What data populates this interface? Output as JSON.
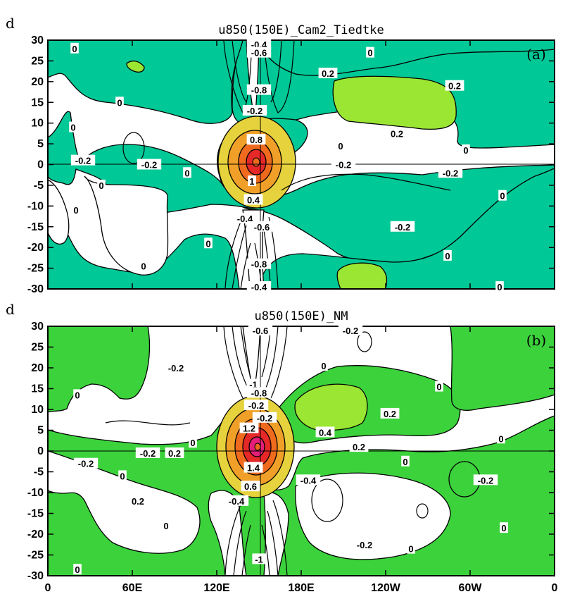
{
  "chart_data": [
    {
      "type": "contour",
      "panel_label": "(a)",
      "title": "u850(150E)_Cam2_Tiedtke",
      "ylabel": "d",
      "yticks": [
        "30",
        "25",
        "20",
        "15",
        "10",
        "5",
        "0",
        "-5",
        "-10",
        "-15",
        "-20",
        "-25",
        "-30"
      ],
      "ylim": [
        -30,
        30
      ],
      "xlim": [
        0,
        360
      ],
      "contour_labels": [
        {
          "text": "0",
          "lon": 19,
          "lag": 28
        },
        {
          "text": "-0.4",
          "lon": 150,
          "lag": 29
        },
        {
          "text": "-0.6",
          "lon": 150,
          "lag": 27
        },
        {
          "text": "0",
          "lon": 229,
          "lag": 27
        },
        {
          "text": "0.2",
          "lon": 199,
          "lag": 22
        },
        {
          "text": "0.2",
          "lon": 289,
          "lag": 19
        },
        {
          "text": "-0.8",
          "lon": 150,
          "lag": 18
        },
        {
          "text": "0",
          "lon": 51,
          "lag": 15
        },
        {
          "text": "-0.2",
          "lon": 147,
          "lag": 13
        },
        {
          "text": "0",
          "lon": 18,
          "lag": 9
        },
        {
          "text": "0.2",
          "lon": 248,
          "lag": 7.5
        },
        {
          "text": "0.8",
          "lon": 148,
          "lag": 6
        },
        {
          "text": "0",
          "lon": 208,
          "lag": 4.5
        },
        {
          "text": "0",
          "lon": 297,
          "lag": 3.5
        },
        {
          "text": "-0.2",
          "lon": 25,
          "lag": 1
        },
        {
          "text": "-0.2",
          "lon": 72,
          "lag": 0
        },
        {
          "text": "0",
          "lon": 99,
          "lag": -2
        },
        {
          "text": "-0.2",
          "lon": 210,
          "lag": 0
        },
        {
          "text": "-0.2",
          "lon": 286,
          "lag": -2
        },
        {
          "text": "0",
          "lon": 38,
          "lag": -5
        },
        {
          "text": "1",
          "lon": 145,
          "lag": -4
        },
        {
          "text": "0",
          "lon": 323,
          "lag": -7.5
        },
        {
          "text": "0.4",
          "lon": 146,
          "lag": -8.5
        },
        {
          "text": "0",
          "lon": 20,
          "lag": -11
        },
        {
          "text": "-0.4",
          "lon": 140,
          "lag": -13
        },
        {
          "text": "-0.6",
          "lon": 152,
          "lag": -15
        },
        {
          "text": "-0.2",
          "lon": 252,
          "lag": -15
        },
        {
          "text": "0",
          "lon": 114,
          "lag": -19
        },
        {
          "text": "0",
          "lon": 284,
          "lag": -22
        },
        {
          "text": "0",
          "lon": 68,
          "lag": -24.5
        },
        {
          "text": "-0.8",
          "lon": 150,
          "lag": -24
        },
        {
          "text": "-0.4",
          "lon": 150,
          "lag": -29.5
        },
        {
          "text": "0",
          "lon": 321,
          "lag": -29.5
        }
      ]
    },
    {
      "type": "contour",
      "panel_label": "(b)",
      "title": "u850(150E)_NM",
      "ylabel": "d",
      "yticks": [
        "30",
        "25",
        "20",
        "15",
        "10",
        "5",
        "0",
        "-5",
        "-10",
        "-15",
        "-20",
        "-25",
        "-30"
      ],
      "ylim": [
        -30,
        30
      ],
      "xlim": [
        0,
        360
      ],
      "xticks": [
        "0",
        "60E",
        "120E",
        "180E",
        "120W",
        "60W",
        "0"
      ],
      "contour_labels": [
        {
          "text": "-0.6",
          "lon": 151,
          "lag": 29
        },
        {
          "text": "-0.2",
          "lon": 215,
          "lag": 29
        },
        {
          "text": "-0.2",
          "lon": 91,
          "lag": 20
        },
        {
          "text": "0",
          "lon": 196,
          "lag": 20.5
        },
        {
          "text": "0",
          "lon": 278,
          "lag": 15.5
        },
        {
          "text": "-1",
          "lon": 146,
          "lag": 16
        },
        {
          "text": "-0.8",
          "lon": 150,
          "lag": 14
        },
        {
          "text": "0",
          "lon": 21,
          "lag": 13.5
        },
        {
          "text": "-0.2",
          "lon": 148,
          "lag": 11
        },
        {
          "text": "0.2",
          "lon": 243,
          "lag": 9
        },
        {
          "text": "-0.2",
          "lon": 154,
          "lag": 8
        },
        {
          "text": "1.2",
          "lon": 143,
          "lag": 5.5
        },
        {
          "text": "0.4",
          "lon": 197,
          "lag": 4.5
        },
        {
          "text": "0",
          "lon": 322,
          "lag": 3
        },
        {
          "text": "0",
          "lon": 103,
          "lag": 2
        },
        {
          "text": "-0.2",
          "lon": 71,
          "lag": -0.5
        },
        {
          "text": "0.2",
          "lon": 90,
          "lag": -0.5
        },
        {
          "text": "0.2",
          "lon": 221,
          "lag": 1
        },
        {
          "text": "-0.2",
          "lon": 27,
          "lag": -3
        },
        {
          "text": "0",
          "lon": 254,
          "lag": -2.5
        },
        {
          "text": "1.4",
          "lon": 146,
          "lag": -4
        },
        {
          "text": "0",
          "lon": 53,
          "lag": -6
        },
        {
          "text": "-0.2",
          "lon": 311,
          "lag": -7
        },
        {
          "text": "-0.4",
          "lon": 185,
          "lag": -7
        },
        {
          "text": "0.6",
          "lon": 144,
          "lag": -8.5
        },
        {
          "text": "-0.4",
          "lon": 134,
          "lag": -12
        },
        {
          "text": "0.2",
          "lon": 64,
          "lag": -12
        },
        {
          "text": "0",
          "lon": 84,
          "lag": -18
        },
        {
          "text": "-0.2",
          "lon": 225,
          "lag": -22.5
        },
        {
          "text": "0",
          "lon": 258,
          "lag": -23.5
        },
        {
          "text": "0",
          "lon": 324,
          "lag": -18.5
        },
        {
          "text": "-1",
          "lon": 150,
          "lag": -26
        },
        {
          "text": "0",
          "lon": 21,
          "lag": -28.5
        }
      ]
    }
  ],
  "colors": {
    "teal": "#00c896",
    "green": "#3cd23c",
    "light_green": "#9be632",
    "yellow": "#e6d23c",
    "orange": "#f0a028",
    "dark_orange": "#f06a1e",
    "red": "#e62828",
    "magenta": "#e61e78"
  }
}
